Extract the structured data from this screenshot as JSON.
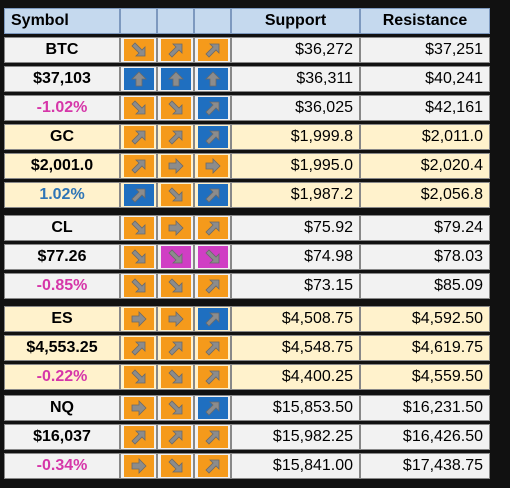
{
  "header": {
    "symbol": "Symbol",
    "support": "Support",
    "resistance": "Resistance"
  },
  "groups": [
    {
      "symbol": "BTC",
      "price": "$37,103",
      "change": "-1.02%",
      "change_dir": "neg",
      "rows": [
        {
          "arrows": [
            [
              "orange",
              "down-right"
            ],
            [
              "orange",
              "up-right"
            ],
            [
              "orange",
              "up-right"
            ]
          ],
          "support": "$36,272",
          "resistance": "$37,251"
        },
        {
          "arrows": [
            [
              "blue",
              "up"
            ],
            [
              "blue",
              "up"
            ],
            [
              "blue",
              "up"
            ]
          ],
          "support": "$36,311",
          "resistance": "$40,241"
        },
        {
          "arrows": [
            [
              "orange",
              "down-right"
            ],
            [
              "orange",
              "down-right"
            ],
            [
              "blue",
              "up-right"
            ]
          ],
          "support": "$36,025",
          "resistance": "$42,161"
        }
      ]
    },
    {
      "symbol": "GC",
      "price": "$2,001.0",
      "change": "1.02%",
      "change_dir": "pos",
      "rows": [
        {
          "arrows": [
            [
              "orange",
              "up-right"
            ],
            [
              "orange",
              "up-right"
            ],
            [
              "blue",
              "up-right"
            ]
          ],
          "support": "$1,999.8",
          "resistance": "$2,011.0"
        },
        {
          "arrows": [
            [
              "orange",
              "up-right"
            ],
            [
              "orange",
              "right"
            ],
            [
              "orange",
              "right"
            ]
          ],
          "support": "$1,995.0",
          "resistance": "$2,020.4"
        },
        {
          "arrows": [
            [
              "blue",
              "up-right"
            ],
            [
              "orange",
              "down-right"
            ],
            [
              "blue",
              "up-right"
            ]
          ],
          "support": "$1,987.2",
          "resistance": "$2,056.8"
        }
      ]
    },
    {
      "symbol": "CL",
      "price": "$77.26",
      "change": "-0.85%",
      "change_dir": "neg",
      "rows": [
        {
          "arrows": [
            [
              "orange",
              "down-right"
            ],
            [
              "orange",
              "right"
            ],
            [
              "orange",
              "up-right"
            ]
          ],
          "support": "$75.92",
          "resistance": "$79.24"
        },
        {
          "arrows": [
            [
              "orange",
              "down-right"
            ],
            [
              "magenta",
              "down-right"
            ],
            [
              "magenta",
              "down-right"
            ]
          ],
          "support": "$74.98",
          "resistance": "$78.03"
        },
        {
          "arrows": [
            [
              "orange",
              "down-right"
            ],
            [
              "orange",
              "down-right"
            ],
            [
              "orange",
              "up-right"
            ]
          ],
          "support": "$73.15",
          "resistance": "$85.09"
        }
      ]
    },
    {
      "symbol": "ES",
      "price": "$4,553.25",
      "change": "-0.22%",
      "change_dir": "neg",
      "rows": [
        {
          "arrows": [
            [
              "orange",
              "right"
            ],
            [
              "orange",
              "right"
            ],
            [
              "blue",
              "up-right"
            ]
          ],
          "support": "$4,508.75",
          "resistance": "$4,592.50"
        },
        {
          "arrows": [
            [
              "orange",
              "up-right"
            ],
            [
              "orange",
              "up-right"
            ],
            [
              "orange",
              "up-right"
            ]
          ],
          "support": "$4,548.75",
          "resistance": "$4,619.75"
        },
        {
          "arrows": [
            [
              "orange",
              "down-right"
            ],
            [
              "orange",
              "down-right"
            ],
            [
              "orange",
              "up-right"
            ]
          ],
          "support": "$4,400.25",
          "resistance": "$4,559.50"
        }
      ]
    },
    {
      "symbol": "NQ",
      "price": "$16,037",
      "change": "-0.34%",
      "change_dir": "neg",
      "rows": [
        {
          "arrows": [
            [
              "orange",
              "right"
            ],
            [
              "orange",
              "down-right"
            ],
            [
              "blue",
              "up-right"
            ]
          ],
          "support": "$15,853.50",
          "resistance": "$16,231.50"
        },
        {
          "arrows": [
            [
              "orange",
              "up-right"
            ],
            [
              "orange",
              "up-right"
            ],
            [
              "orange",
              "up-right"
            ]
          ],
          "support": "$15,982.25",
          "resistance": "$16,426.50"
        },
        {
          "arrows": [
            [
              "orange",
              "right"
            ],
            [
              "orange",
              "down-right"
            ],
            [
              "orange",
              "up-right"
            ]
          ],
          "support": "$15,841.00",
          "resistance": "$17,438.75"
        }
      ]
    }
  ]
}
